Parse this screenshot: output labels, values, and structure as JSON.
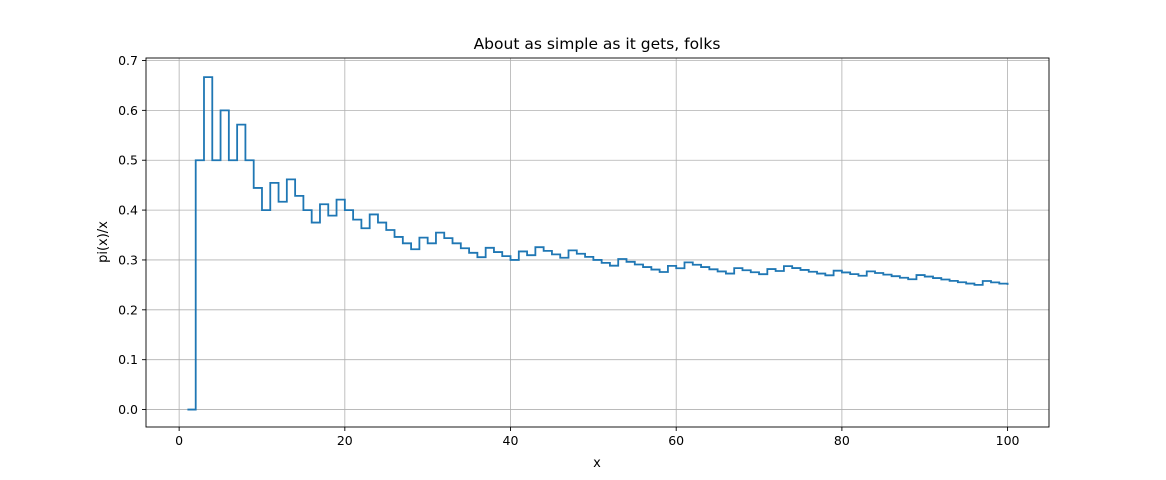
{
  "chart_data": {
    "type": "line",
    "title": "About as simple as it gets, folks",
    "xlabel": "x",
    "ylabel": "pi(x)/x",
    "xlim": [
      -4,
      105
    ],
    "ylim": [
      -0.035,
      0.705
    ],
    "xticks": [
      0,
      20,
      40,
      60,
      80,
      100
    ],
    "yticks": [
      0.0,
      0.1,
      0.2,
      0.3,
      0.4,
      0.5,
      0.6,
      0.7
    ],
    "grid": true,
    "series_color": "#1f77b4",
    "x_range": [
      1,
      100
    ],
    "y_formula": "prime-counting function pi(x) divided by x, evaluated at integers 1..100 as a post step plot"
  }
}
